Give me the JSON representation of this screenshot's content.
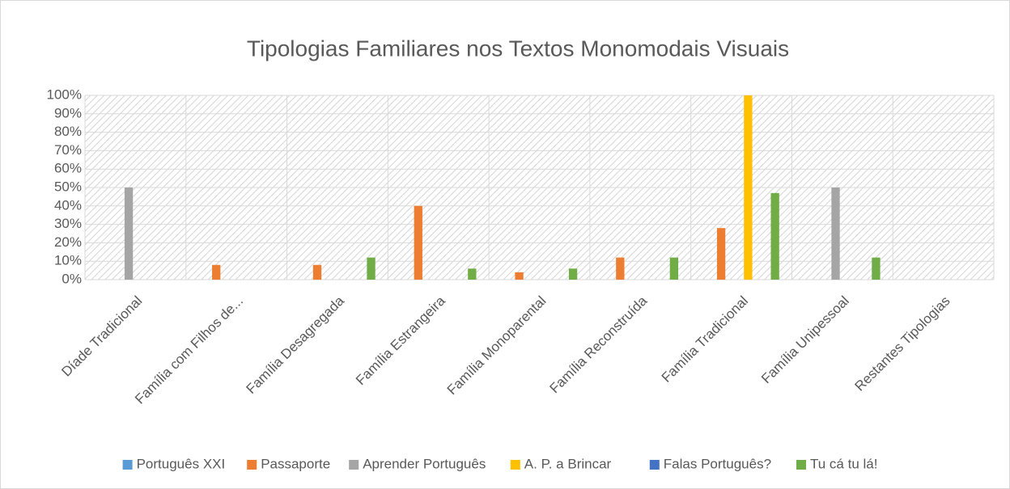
{
  "chart_data": {
    "type": "bar",
    "title": "Tipologias Familiares nos Textos Monomodais Visuais",
    "categories": [
      "Díade Tradicional",
      "Família com Filhos de...",
      "Família Desagregada",
      "Família Estrangeira",
      "Família Monoparental",
      "Família Reconstruída",
      "Família Tradicional",
      "Família Unipessoal",
      "Restantes Tipologias"
    ],
    "series": [
      {
        "name": "Português XXI",
        "color": "#5b9bd5",
        "values": [
          0,
          0,
          0,
          0,
          0,
          0,
          0,
          0,
          0
        ]
      },
      {
        "name": "Passaporte",
        "color": "#ed7d31",
        "values": [
          0,
          8,
          8,
          40,
          4,
          12,
          28,
          0,
          0
        ]
      },
      {
        "name": "Aprender Português",
        "color": "#a5a5a5",
        "values": [
          50,
          0,
          0,
          0,
          0,
          0,
          0,
          50,
          0
        ]
      },
      {
        "name": "A. P. a Brincar",
        "color": "#ffc000",
        "values": [
          0,
          0,
          0,
          0,
          0,
          0,
          100,
          0,
          0
        ]
      },
      {
        "name": "Falas Português?",
        "color": "#4472c4",
        "values": [
          0,
          0,
          0,
          0,
          0,
          0,
          0,
          0,
          0
        ]
      },
      {
        "name": "Tu cá tu lá!",
        "color": "#70ad47",
        "values": [
          0,
          0,
          12,
          6,
          6,
          12,
          47,
          12,
          0
        ]
      }
    ],
    "ylim": [
      0,
      100
    ],
    "yticks": [
      {
        "value": 0,
        "label": "0%"
      },
      {
        "value": 10,
        "label": "10%"
      },
      {
        "value": 20,
        "label": "20%"
      },
      {
        "value": 30,
        "label": "30%"
      },
      {
        "value": 40,
        "label": "40%"
      },
      {
        "value": 50,
        "label": "50%"
      },
      {
        "value": 60,
        "label": "60%"
      },
      {
        "value": 70,
        "label": "70%"
      },
      {
        "value": 80,
        "label": "80%"
      },
      {
        "value": 90,
        "label": "90%"
      },
      {
        "value": 100,
        "label": "100%"
      }
    ],
    "grid": true,
    "legend": "bottom"
  }
}
